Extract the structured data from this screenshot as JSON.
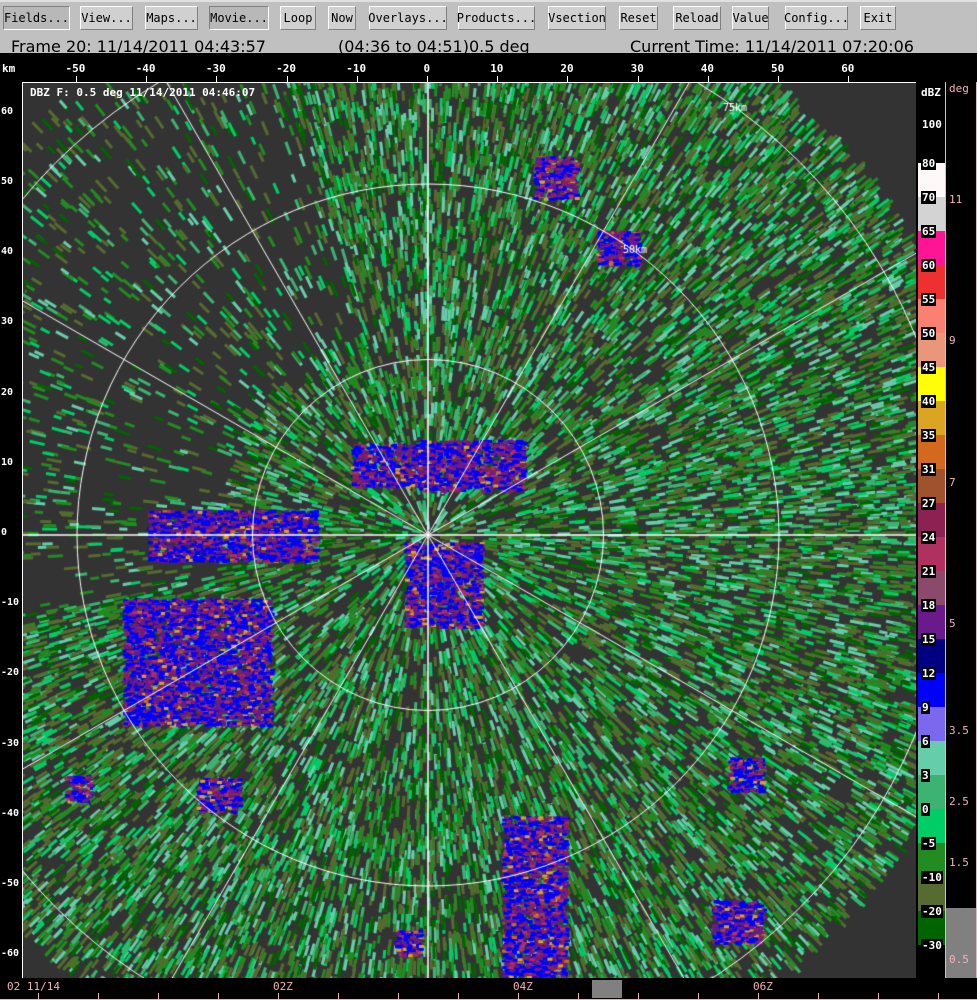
{
  "toolbar": {
    "buttons": [
      {
        "label": "Fields...",
        "on": true
      },
      {
        "label": "View..."
      },
      {
        "label": "Maps..."
      },
      {
        "label": "Movie...",
        "on": true
      },
      {
        "label": "Loop"
      },
      {
        "label": "Now"
      },
      {
        "label": "Overlays..."
      },
      {
        "label": "Products..."
      },
      {
        "label": "Vsection"
      },
      {
        "label": "Reset"
      },
      {
        "label": "Reload"
      },
      {
        "label": "Value"
      },
      {
        "label": "Config..."
      },
      {
        "label": "Exit"
      }
    ]
  },
  "header": {
    "frame": "Frame 20: 11/14/2011 04:43:57",
    "range": "(04:36 to 04:51)0.5 deg",
    "current_time": "Current Time: 11/14/2011 07:20:06"
  },
  "plot": {
    "title": "DBZ F: 0.5 deg 11/14/2011 04:46:07",
    "unit": "km",
    "x_ticks": [
      "-50",
      "-40",
      "-30",
      "-20",
      "-10",
      "0",
      "10",
      "20",
      "30",
      "40",
      "50",
      "60"
    ],
    "y_ticks": [
      "60",
      "50",
      "40",
      "30",
      "20",
      "10",
      "0",
      "-10",
      "-20",
      "-30",
      "-40",
      "-50",
      "-60"
    ],
    "range_ring_labels": [
      "75km",
      "50km"
    ]
  },
  "color_scale": {
    "unit": "dBZ",
    "top_label": "100",
    "labels": [
      "80",
      "70",
      "65",
      "60",
      "55",
      "50",
      "45",
      "40",
      "35",
      "31",
      "27",
      "24",
      "21",
      "18",
      "15",
      "12",
      "9",
      "6",
      "3",
      "0",
      "-5",
      "-10",
      "-20",
      "-30"
    ],
    "colors": [
      "#fff8f8",
      "#d3d3d3",
      "#ff1493",
      "#ee3030",
      "#fa8072",
      "#e9967a",
      "#ffff00",
      "#daa520",
      "#d2691e",
      "#a0522d",
      "#8b2252",
      "#b03060",
      "#8b4a6b",
      "#6a1a8a",
      "#000080",
      "#0000ff",
      "#7b68ee",
      "#66cdaa",
      "#3cb371",
      "#00cd66",
      "#228b22",
      "#556b2f",
      "#006400"
    ]
  },
  "elevation_scale": {
    "unit": "deg",
    "labels": [
      "11",
      "9",
      "7",
      "5",
      "3.5",
      "2.5",
      "1.5",
      "0.5"
    ],
    "selected": "0.5"
  },
  "timeline": {
    "labels": [
      "02 11/14",
      "02Z",
      "04Z",
      "06Z"
    ]
  }
}
